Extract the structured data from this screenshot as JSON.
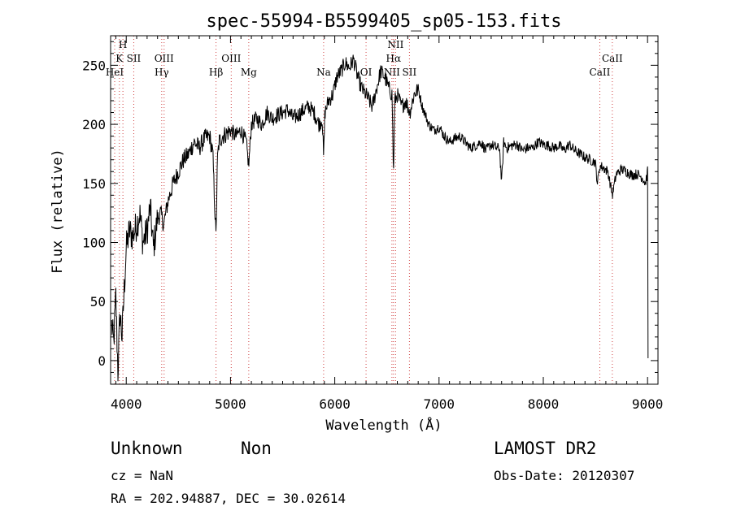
{
  "chart_data": {
    "type": "line",
    "title": "spec-55994-B5599405_sp05-153.fits",
    "xlabel": "Wavelength (Å)",
    "ylabel": "Flux (relative)",
    "xlim": [
      3850,
      9100
    ],
    "ylim": [
      -20,
      275
    ],
    "xticks": [
      4000,
      5000,
      6000,
      7000,
      8000,
      9000
    ],
    "yticks": [
      0,
      50,
      100,
      150,
      200,
      250
    ],
    "grid": false,
    "series": [
      {
        "name": "spectrum",
        "x": [
          3860,
          3880,
          3900,
          3920,
          3940,
          3960,
          3980,
          4000,
          4030,
          4060,
          4100,
          4130,
          4160,
          4200,
          4230,
          4260,
          4300,
          4330,
          4360,
          4400,
          4450,
          4500,
          4550,
          4600,
          4650,
          4700,
          4750,
          4800,
          4830,
          4860,
          4875,
          4890,
          4920,
          4960,
          5000,
          5050,
          5100,
          5150,
          5175,
          5200,
          5250,
          5300,
          5350,
          5400,
          5450,
          5500,
          5550,
          5600,
          5650,
          5700,
          5750,
          5800,
          5850,
          5880,
          5893,
          5905,
          5940,
          5980,
          6020,
          6060,
          6100,
          6140,
          6180,
          6220,
          6260,
          6300,
          6330,
          6360,
          6400,
          6440,
          6480,
          6520,
          6550,
          6563,
          6575,
          6600,
          6640,
          6680,
          6720,
          6760,
          6800,
          6840,
          6870,
          6900,
          6950,
          7000,
          7050,
          7100,
          7150,
          7200,
          7250,
          7300,
          7350,
          7400,
          7450,
          7500,
          7550,
          7580,
          7600,
          7620,
          7650,
          7700,
          7750,
          7800,
          7850,
          7900,
          7950,
          8000,
          8050,
          8100,
          8150,
          8200,
          8250,
          8300,
          8350,
          8400,
          8450,
          8498,
          8520,
          8542,
          8580,
          8620,
          8662,
          8700,
          8750,
          8800,
          8850,
          8900,
          8950,
          8980,
          9000,
          9005
        ],
        "values": [
          30,
          15,
          55,
          -10,
          40,
          20,
          60,
          95,
          110,
          105,
          115,
          125,
          100,
          110,
          130,
          95,
          120,
          125,
          115,
          135,
          150,
          160,
          170,
          175,
          185,
          180,
          188,
          190,
          175,
          105,
          170,
          185,
          190,
          192,
          195,
          190,
          195,
          185,
          165,
          200,
          205,
          200,
          210,
          205,
          208,
          210,
          212,
          205,
          208,
          212,
          215,
          210,
          200,
          205,
          170,
          210,
          220,
          225,
          240,
          245,
          252,
          248,
          255,
          240,
          230,
          225,
          220,
          215,
          230,
          245,
          240,
          230,
          225,
          155,
          220,
          225,
          215,
          220,
          210,
          225,
          230,
          215,
          208,
          200,
          195,
          198,
          190,
          185,
          188,
          190,
          185,
          180,
          182,
          185,
          178,
          183,
          180,
          180,
          150,
          185,
          180,
          182,
          183,
          178,
          180,
          180,
          185,
          183,
          182,
          180,
          182,
          178,
          183,
          178,
          175,
          172,
          170,
          168,
          150,
          165,
          163,
          160,
          140,
          158,
          162,
          160,
          157,
          158,
          155,
          150,
          160,
          2
        ]
      }
    ],
    "spectral_lines": [
      {
        "label": "HeI",
        "wavelength": 3889
      },
      {
        "label": "K",
        "wavelength": 3934
      },
      {
        "label": "H",
        "wavelength": 3968
      },
      {
        "label": "SII",
        "wavelength": 4072
      },
      {
        "label": "Hγ",
        "wavelength": 4340
      },
      {
        "label": "OIII",
        "wavelength": 4363
      },
      {
        "label": "Hβ",
        "wavelength": 4861
      },
      {
        "label": "OIII",
        "wavelength": 5007
      },
      {
        "label": "Mg",
        "wavelength": 5175
      },
      {
        "label": "Na",
        "wavelength": 5893
      },
      {
        "label": "OI",
        "wavelength": 6300
      },
      {
        "label": "NII",
        "wavelength": 6548
      },
      {
        "label": "Hα",
        "wavelength": 6563
      },
      {
        "label": "NII",
        "wavelength": 6583
      },
      {
        "label": "SII",
        "wavelength": 6716
      },
      {
        "label": "CaII",
        "wavelength": 8542
      },
      {
        "label": "CaII",
        "wavelength": 8662
      }
    ]
  },
  "annotations": {
    "classification": "Unknown",
    "subclass": "Non",
    "survey": "LAMOST DR2",
    "redshift": "cz = NaN",
    "obs_date": "Obs-Date: 20120307",
    "coordinates": "RA = 202.94887, DEC =  30.02614"
  }
}
